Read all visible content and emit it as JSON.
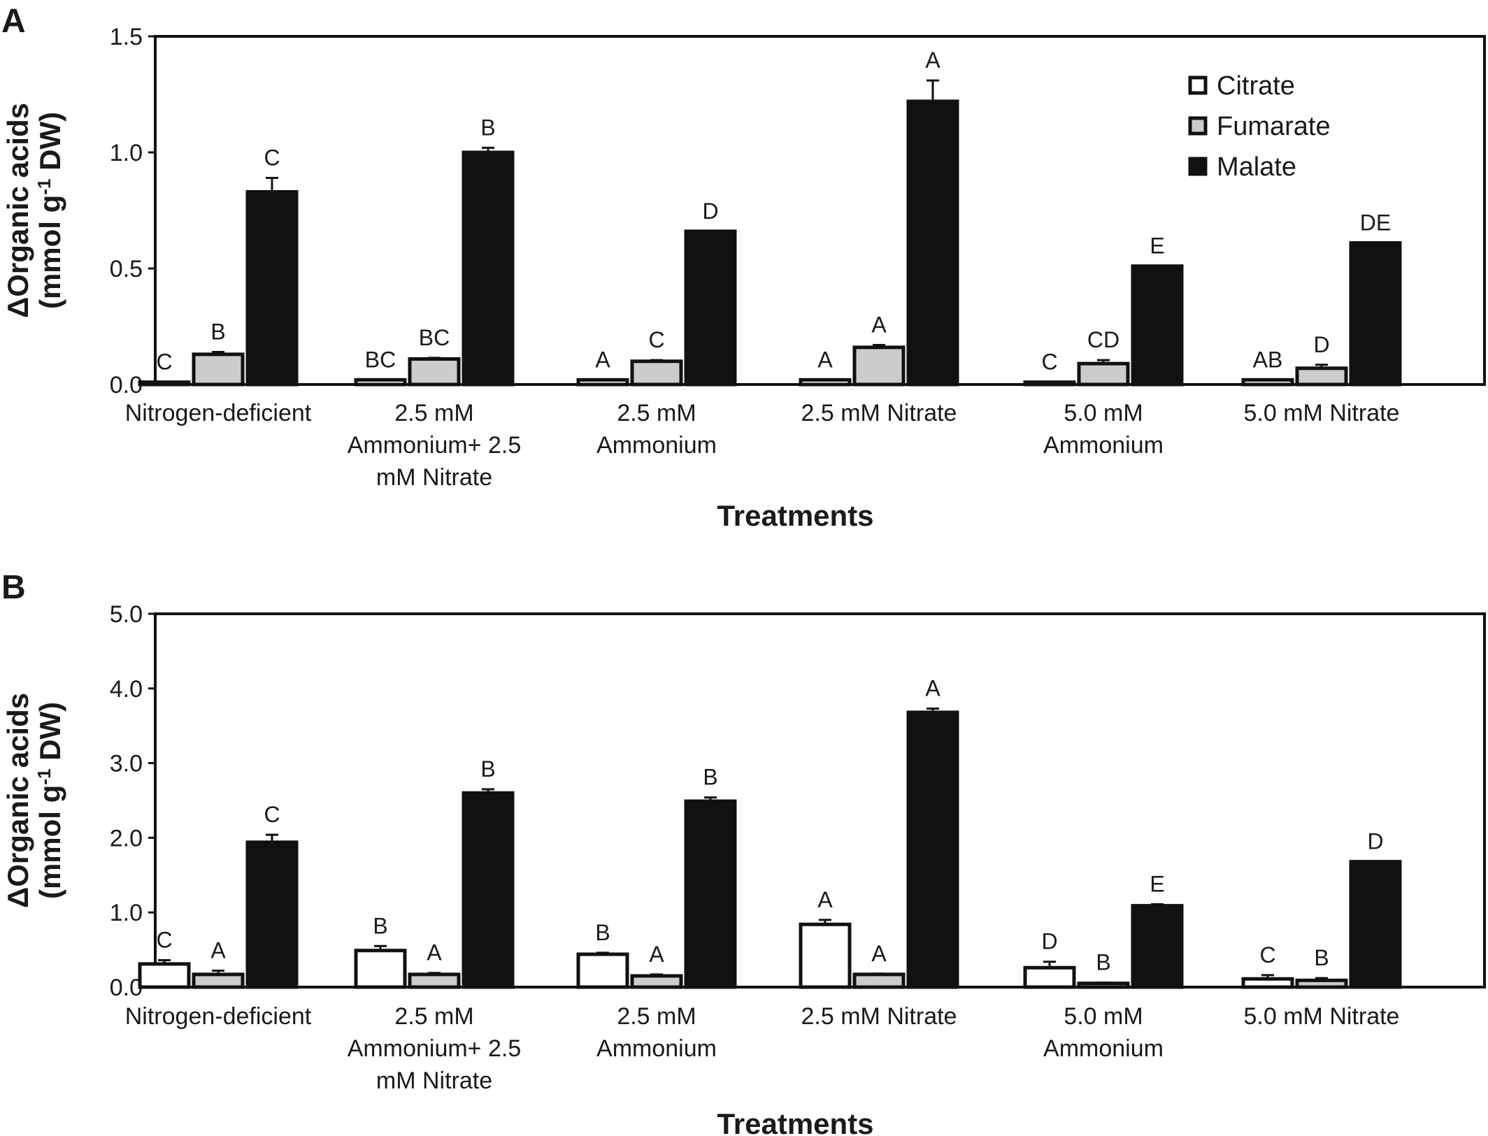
{
  "chart_data": [
    {
      "type": "bar",
      "panel": "A",
      "xlabel": "Treatments",
      "ylabel": "ΔOrganic acids",
      "ylabel_unit": [
        "(mmol g",
        "-1",
        " DW)"
      ],
      "ylim": [
        0,
        1.5
      ],
      "yticks": [
        "0.0",
        "0.5",
        "1.0",
        "1.5"
      ],
      "categories": [
        [
          "Nitrogen-deficient"
        ],
        [
          "2.5 mM",
          "Ammonium+ 2.5",
          "mM Nitrate"
        ],
        [
          "2.5 mM",
          "Ammonium"
        ],
        [
          "2.5 mM Nitrate"
        ],
        [
          "5.0 mM",
          "Ammonium"
        ],
        [
          "5.0 mM Nitrate"
        ]
      ],
      "series": [
        {
          "name": "Citrate",
          "color": "#ffffff",
          "values": [
            0.01,
            0.02,
            0.02,
            0.02,
            0.01,
            0.02
          ],
          "errors": [
            0,
            0,
            0,
            0,
            0,
            0
          ],
          "letters": [
            "C",
            "BC",
            "A",
            "A",
            "C",
            "AB"
          ]
        },
        {
          "name": "Fumarate",
          "color": "#cccccc",
          "values": [
            0.13,
            0.11,
            0.1,
            0.16,
            0.09,
            0.07
          ],
          "errors": [
            0.01,
            0.005,
            0.005,
            0.01,
            0.015,
            0.015
          ],
          "letters": [
            "B",
            "BC",
            "C",
            "A",
            "CD",
            "D"
          ]
        },
        {
          "name": "Malate",
          "color": "#111111",
          "values": [
            0.83,
            1.0,
            0.66,
            1.22,
            0.51,
            0.61
          ],
          "errors": [
            0.06,
            0.02,
            0,
            0.09,
            0,
            0
          ],
          "letters": [
            "C",
            "B",
            "D",
            "A",
            "E",
            "DE"
          ]
        }
      ],
      "legend": {
        "placement": "top-right",
        "entries": [
          "Citrate",
          "Fumarate",
          "Malate"
        ]
      }
    },
    {
      "type": "bar",
      "panel": "B",
      "xlabel": "Treatments",
      "ylabel": "ΔOrganic acids",
      "ylabel_unit": [
        "(mmol g",
        "-1",
        " DW)"
      ],
      "ylim": [
        0,
        5.0
      ],
      "yticks": [
        "0.0",
        "1.0",
        "2.0",
        "3.0",
        "4.0",
        "5.0"
      ],
      "categories": [
        [
          "Nitrogen-deficient"
        ],
        [
          "2.5 mM",
          "Ammonium+ 2.5",
          "mM Nitrate"
        ],
        [
          "2.5 mM",
          "Ammonium"
        ],
        [
          "2.5 mM Nitrate"
        ],
        [
          "5.0 mM",
          "Ammonium"
        ],
        [
          "5.0 mM Nitrate"
        ]
      ],
      "series": [
        {
          "name": "Citrate",
          "color": "#ffffff",
          "values": [
            0.31,
            0.49,
            0.44,
            0.84,
            0.26,
            0.11
          ],
          "errors": [
            0.05,
            0.06,
            0.02,
            0.06,
            0.08,
            0.05
          ],
          "letters": [
            "C",
            "B",
            "B",
            "A",
            "D",
            "C"
          ]
        },
        {
          "name": "Fumarate",
          "color": "#cccccc",
          "values": [
            0.17,
            0.17,
            0.15,
            0.17,
            0.05,
            0.09
          ],
          "errors": [
            0.05,
            0.02,
            0.02,
            0.01,
            0.01,
            0.03
          ],
          "letters": [
            "A",
            "A",
            "A",
            "A",
            "B",
            "B"
          ]
        },
        {
          "name": "Malate",
          "color": "#111111",
          "values": [
            1.94,
            2.6,
            2.49,
            3.68,
            1.09,
            1.68
          ],
          "errors": [
            0.1,
            0.05,
            0.05,
            0.05,
            0.02,
            0
          ],
          "letters": [
            "C",
            "B",
            "B",
            "A",
            "E",
            "D"
          ]
        }
      ]
    }
  ]
}
